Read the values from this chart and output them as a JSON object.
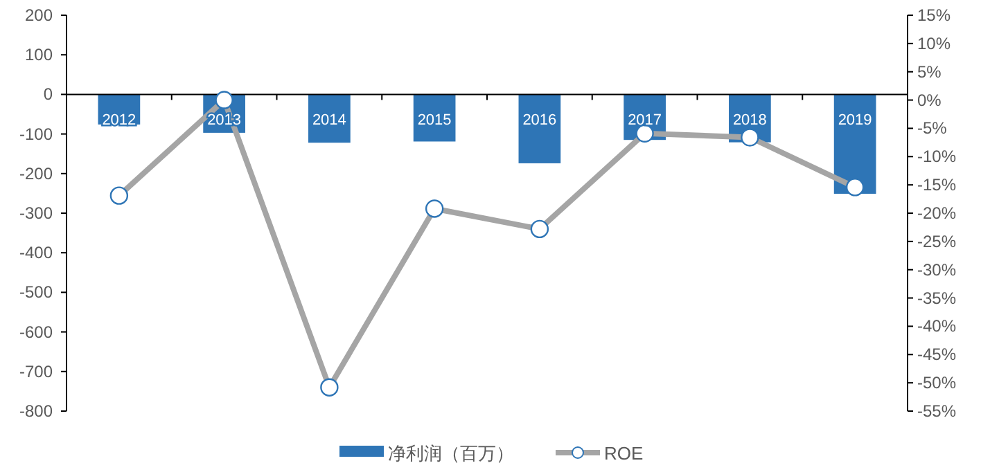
{
  "chart_data": {
    "type": "bar",
    "categories": [
      "2012",
      "2013",
      "2014",
      "2015",
      "2016",
      "2017",
      "2018",
      "2019"
    ],
    "series": [
      {
        "name": "净利润（百万）",
        "color": "#2e75b6",
        "values": [
          -76,
          -97,
          -122,
          -119,
          -174,
          -115,
          -121,
          -251
        ]
      },
      {
        "name": "ROE",
        "type": "line",
        "axis": "y2",
        "color": "#a5a5a5",
        "values": [
          -16.9,
          0,
          -50.8,
          -19.2,
          -22.8,
          -5.9,
          -6.6,
          -15.4
        ]
      }
    ],
    "ylim": [
      -800,
      200
    ],
    "yticks": [
      -800,
      -700,
      -600,
      -500,
      -400,
      -300,
      -200,
      -100,
      0,
      100,
      200
    ],
    "y2lim": [
      -55,
      15
    ],
    "y2ticks": [
      {
        "value": -55,
        "label": "-55%"
      },
      {
        "value": -50,
        "label": "-50%"
      },
      {
        "value": -45,
        "label": "-45%"
      },
      {
        "value": -40,
        "label": "-40%"
      },
      {
        "value": -35,
        "label": "-35%"
      },
      {
        "value": -30,
        "label": "-30%"
      },
      {
        "value": -25,
        "label": "-25%"
      },
      {
        "value": -20,
        "label": "-20%"
      },
      {
        "value": -15,
        "label": "-15%"
      },
      {
        "value": -10,
        "label": "-10%"
      },
      {
        "value": -5,
        "label": "-5%"
      },
      {
        "value": 0,
        "label": "0%"
      },
      {
        "value": 5,
        "label": "5%"
      },
      {
        "value": 10,
        "label": "10%"
      },
      {
        "value": 15,
        "label": "15%"
      }
    ],
    "marker": "circle",
    "line_style": "solid",
    "legend": "bottom",
    "grid": false
  }
}
